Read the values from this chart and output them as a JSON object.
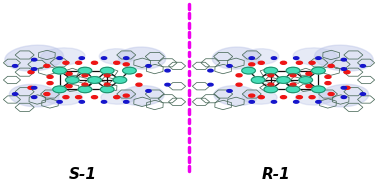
{
  "label_left": "S-1",
  "label_right": "R-1",
  "separator_color": "#EE00EE",
  "bg_color": "#FFFFFF",
  "label_fontsize": 11,
  "wing_color": "#BCC5E8",
  "wing_alpha": 0.45,
  "bond_color": "#4A6A5A",
  "bond_lw": 0.55,
  "co_color": "#45DEB8",
  "co_edge": "#208060",
  "co_r": 0.018,
  "o_color": "#EE1515",
  "o_r": 0.008,
  "n_color": "#1515CC",
  "n_r": 0.007,
  "figsize": [
    3.78,
    1.86
  ],
  "dpi": 100
}
